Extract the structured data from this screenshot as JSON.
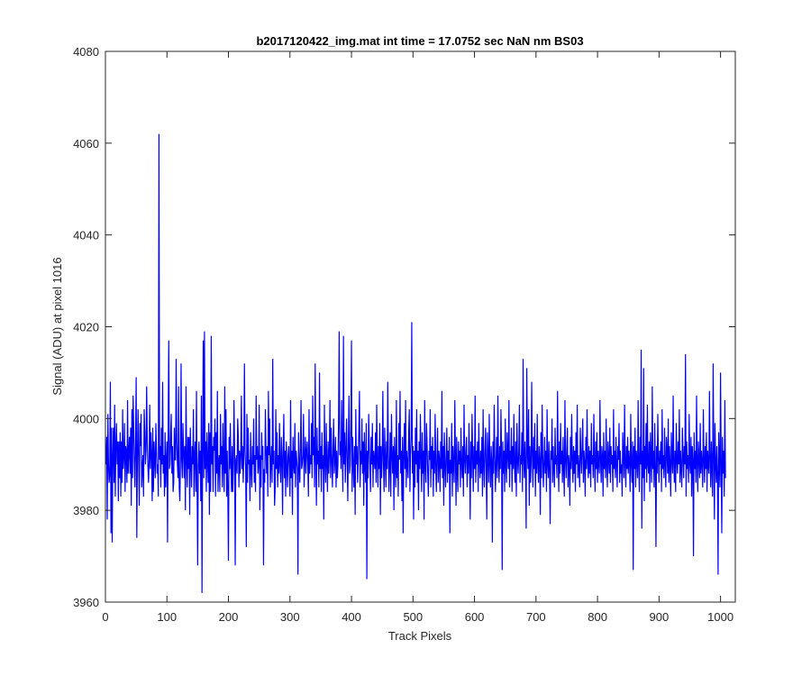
{
  "chart_data": {
    "type": "line",
    "title": "b2017120422_img.mat int time = 17.0752 sec  NaN nm BS03",
    "xlabel": "Track Pixels",
    "ylabel": "Signal (ADU) at pixel 1016",
    "xlim": [
      0,
      1024
    ],
    "ylim": [
      3960,
      4080
    ],
    "xticks": [
      0,
      100,
      200,
      300,
      400,
      500,
      600,
      700,
      800,
      900,
      1000
    ],
    "yticks": [
      3960,
      3980,
      4000,
      4020,
      4040,
      4060,
      4080
    ],
    "grid": false,
    "legend": "none",
    "series": [
      {
        "color": "#0000ff",
        "x_start": 1,
        "x_step": 1,
        "values": [
          3990,
          3996,
          3978,
          4001,
          3990,
          3986,
          3988,
          4008,
          3975,
          3998,
          3973,
          3992,
          3998,
          3986,
          4003,
          3983,
          3994,
          3999,
          3990,
          3995,
          3982,
          3995,
          3987,
          3997,
          3983,
          3995,
          3986,
          4002,
          3989,
          3992,
          3999,
          3984,
          3994,
          3993,
          3986,
          4004,
          3988,
          3993,
          3996,
          3988,
          3998,
          3981,
          4002,
          3987,
          4005,
          3998,
          3990,
          3985,
          3996,
          4009,
          3974,
          3992,
          4002,
          3991,
          3981,
          3999,
          3994,
          4001,
          3985,
          3989,
          3992,
          3983,
          4002,
          3997,
          3990,
          3993,
          4007,
          3995,
          3990,
          3986,
          3991,
          4003,
          3989,
          3997,
          3992,
          3982,
          3998,
          3984,
          3995,
          3991,
          3987,
          3999,
          3993,
          3988,
          3990,
          3983,
          4062,
          3991,
          3994,
          3985,
          3998,
          3990,
          4008,
          3988,
          3992,
          3983,
          3997,
          3985,
          3991,
          3995,
          3973,
          3999,
          4017,
          3989,
          3990,
          3996,
          4001,
          3988,
          3994,
          3984,
          3986,
          3998,
          3991,
          3991,
          4013,
          3995,
          3990,
          3987,
          4007,
          3985,
          3982,
          3991,
          4012,
          3991,
          3987,
          3999,
          3993,
          3987,
          3994,
          3980,
          4007,
          3991,
          3985,
          3996,
          3989,
          3996,
          3979,
          3998,
          3991,
          3985,
          3994,
          3990,
          4002,
          3983,
          3992,
          3995,
          3984,
          4006,
          3986,
          3968,
          3990,
          3995,
          3988,
          3993,
          3982,
          4005,
          3962,
          3993,
          4017,
          3987,
          4019,
          3989,
          3995,
          3984,
          3997,
          3991,
          3986,
          3999,
          3979,
          3997,
          3984,
          4018,
          3990,
          3994,
          3984,
          3996,
          3993,
          4000,
          3983,
          3997,
          3988,
          4006,
          3984,
          3990,
          3992,
          3984,
          4001,
          3990,
          3994,
          3985,
          3999,
          3990,
          3984,
          4007,
          3988,
          4002,
          3983,
          3993,
          3984,
          3969,
          3996,
          3989,
          3999,
          3990,
          3984,
          3994,
          3984,
          3990,
          4004,
          3993,
          3968,
          3991,
          3992,
          3988,
          4000,
          3996,
          3985,
          3993,
          3988,
          3992,
          4005,
          3989,
          3994,
          3986,
          3992,
          4012,
          3993,
          3989,
          3972,
          4001,
          3986,
          3998,
          3990,
          3991,
          3982,
          3997,
          3989,
          3985,
          3994,
          3990,
          4000,
          3986,
          3992,
          3984,
          4005,
          3991,
          3994,
          3988,
          3990,
          4003,
          3980,
          3992,
          3985,
          3997,
          3991,
          3994,
          3968,
          3989,
          3986,
          4002,
          3993,
          3988,
          3994,
          3983,
          4006,
          3992,
          4000,
          3985,
          3990,
          3994,
          3986,
          4013,
          3990,
          3993,
          3981,
          3985,
          4002,
          3989,
          3997,
          3985,
          3992,
          3988,
          3999,
          3990,
          3986,
          3996,
          3992,
          3979,
          3993,
          4001,
          3987,
          3993,
          3983,
          3995,
          3990,
          3985,
          3992,
          3994,
          3989,
          3983,
          4004,
          3987,
          3993,
          3979,
          3996,
          3990,
          3988,
          3999,
          3985,
          3993,
          3991,
          3989,
          3966,
          3997,
          3991,
          3986,
          3993,
          4004,
          3989,
          3990,
          3992,
          4001,
          3985,
          3991,
          3996,
          3988,
          3993,
          3995,
          3990,
          3983,
          4002,
          3988,
          3992,
          3990,
          3999,
          3987,
          4005,
          3992,
          3996,
          3985,
          4012,
          3991,
          3981,
          3998,
          3990,
          3993,
          3985,
          4010,
          3989,
          3994,
          3984,
          3997,
          3989,
          3992,
          3978,
          4003,
          3991,
          3986,
          3999,
          3990,
          3984,
          3995,
          3988,
          3992,
          4004,
          3987,
          3998,
          3991,
          3985,
          3993,
          4000,
          3988,
          3991,
          3996,
          3985,
          3993,
          3987,
          3990,
          3999,
          4019,
          3992,
          3995,
          3989,
          4004,
          3993,
          3984,
          4018,
          3990,
          3997,
          3986,
          3993,
          4000,
          3991,
          3982,
          3995,
          4005,
          3988,
          3990,
          3998,
          4017,
          3984,
          3996,
          3990,
          3985,
          3994,
          3979,
          4002,
          3990,
          3994,
          3986,
          3991,
          3998,
          4006,
          3985,
          3993,
          3990,
          4000,
          3988,
          3995,
          3981,
          3997,
          3990,
          3986,
          3999,
          3965,
          3993,
          3987,
          4001,
          3994,
          3989,
          3984,
          3996,
          3990,
          3999,
          3985,
          3993,
          3991,
          3989,
          3997,
          3986,
          4003,
          3991,
          3985,
          3994,
          3989,
          3999,
          3979,
          3994,
          3987,
          3992,
          4006,
          3990,
          3984,
          3998,
          3991,
          3985,
          3995,
          3989,
          4008,
          3993,
          3984,
          3990,
          3997,
          3983,
          4001,
          3992,
          3988,
          3994,
          3980,
          3996,
          3990,
          3985,
          4004,
          3987,
          3992,
          3983,
          3999,
          3991,
          4006,
          3988,
          3993,
          3982,
          3996,
          3975,
          3992,
          3999,
          3989,
          4004,
          3985,
          3993,
          3990,
          3987,
          3997,
          4002,
          3984,
          3992,
          3996,
          4021,
          3988,
          3994,
          3978,
          3993,
          3985,
          3998,
          3990,
          4002,
          3986,
          3993,
          3980,
          3995,
          3989,
          4001,
          3991,
          3984,
          3997,
          3988,
          3993,
          3978,
          4004,
          3990,
          3986,
          3999,
          3994,
          3988,
          3983,
          3993,
          3991,
          4002,
          3985,
          3994,
          3989,
          3996,
          3983,
          3993,
          3988,
          4001,
          3990,
          3984,
          3992,
          3998,
          3986,
          3993,
          3991,
          3984,
          3995,
          3989,
          4006,
          3987,
          3994,
          3981,
          3997,
          3990,
          3985,
          3992,
          3998,
          3986,
          3993,
          3988,
          3996,
          3975,
          3991,
          3988,
          3999,
          3983,
          3994,
          3990,
          3986,
          4004,
          3992,
          3981,
          3996,
          3989,
          3984,
          3995,
          3990,
          3993,
          3985,
          3998,
          3990,
          3987,
          3994,
          3983,
          4003,
          3991,
          3988,
          3993,
          3996,
          3985,
          3992,
          3988,
          3999,
          3990,
          3978,
          3995,
          3987,
          4001,
          3992,
          3984,
          3994,
          3989,
          4005,
          3986,
          3993,
          3990,
          3995,
          3984,
          3999,
          3991,
          3987,
          3993,
          3988,
          3996,
          3983,
          4002,
          3990,
          3985,
          3993,
          3998,
          3989,
          3978,
          3997,
          3992,
          3986,
          4001,
          3990,
          3985,
          3994,
          3991,
          3973,
          3995,
          3988,
          4003,
          3992,
          3984,
          3990,
          3996,
          3987,
          4005,
          3991,
          3986,
          3994,
          3989,
          4002,
          3992,
          3967,
          3995,
          3988,
          3993,
          3984,
          4000,
          3990,
          3986,
          3997,
          3992,
          3989,
          4004,
          3985,
          3993,
          3990,
          3998,
          3984,
          3994,
          3989,
          4001,
          3990,
          3986,
          3995,
          3983,
          3999,
          3991,
          3988,
          3993,
          4003,
          3986,
          3992,
          3990,
          3997,
          3984,
          4013,
          3991,
          3987,
          3995,
          3989,
          3976,
          4011,
          3993,
          3989,
          4002,
          3981,
          3994,
          3986,
          3990,
          4008,
          3992,
          3985,
          3996,
          3989,
          3999,
          3983,
          3993,
          3988,
          4001,
          3990,
          3986,
          3994,
          3991,
          3979,
          3997,
          3987,
          4003,
          3992,
          3985,
          3990,
          3996,
          3988,
          3993,
          3984,
          4002,
          3990,
          3987,
          3995,
          3989,
          3977,
          3993,
          3991,
          4000,
          3986,
          3994,
          3989,
          3985,
          3998,
          3990,
          3992,
          3987,
          4006,
          3991,
          3984,
          3995,
          3988,
          3999,
          3990,
          3993,
          3986,
          3996,
          3989,
          3983,
          4004,
          3991,
          3987,
          3993,
          3998,
          3985,
          3992,
          3990,
          3981,
          3996,
          3989,
          4001,
          3991,
          3986,
          3994,
          3988,
          3993,
          3984,
          3997,
          3990,
          4003,
          3987,
          3992,
          3989,
          3985,
          3998,
          3992,
          3988,
          3994,
          4000,
          3986,
          3993,
          3990,
          3983,
          3996,
          3989,
          4002,
          3991,
          3987,
          3994,
          3988,
          3993,
          3985,
          3999,
          3990,
          3992,
          3987,
          4001,
          3991,
          3984,
          3995,
          3989,
          3997,
          3986,
          3993,
          3990,
          3988,
          4004,
          3991,
          3986,
          3994,
          3992,
          3983,
          3997,
          3989,
          3993,
          3987,
          4000,
          3990,
          3985,
          3995,
          3991,
          3988,
          3998,
          3986,
          3994,
          3990,
          3992,
          3984,
          4002,
          3989,
          3993,
          3987,
          3996,
          3990,
          3985,
          3994,
          3991,
          3999,
          3986,
          3993,
          3988,
          3990,
          3983,
          3997,
          3992,
          3987,
          4003,
          3990,
          3985,
          3994,
          3989,
          3996,
          3988,
          3993,
          3991,
          3984,
          4001,
          3990,
          3986,
          3995,
          3967,
          3994,
          3989,
          3998,
          3985,
          3993,
          3991,
          3987,
          4004,
          3990,
          3984,
          3996,
          3990,
          4015,
          3976,
          3993,
          3987,
          4011,
          3982,
          3994,
          3989,
          3999,
          3986,
          4003,
          3990,
          3988,
          3995,
          3984,
          3997,
          3991,
          3986,
          4007,
          3989,
          3993,
          3985,
          3999,
          3990,
          3972,
          3994,
          3988,
          4001,
          3991,
          3986,
          3993,
          3990,
          3995,
          3984,
          4002,
          3989,
          3992,
          3987,
          3998,
          3990,
          3985,
          3996,
          3993,
          3988,
          4000,
          3986,
          3994,
          3990,
          3983,
          3997,
          3991,
          3988,
          4005,
          3990,
          3986,
          3993,
          3984,
          3999,
          3991,
          3988,
          3995,
          3990,
          4002,
          3986,
          3993,
          3989,
          3985,
          3998,
          3992,
          3987,
          3994,
          3990,
          4014,
          3983,
          3995,
          3989,
          3992,
          3986,
          4001,
          3990,
          3988,
          3996,
          3983,
          3994,
          3991,
          3970,
          3997,
          3989,
          3993,
          3986,
          4005,
          3990,
          3984,
          3995,
          3991,
          3987,
          3999,
          3988,
          3993,
          3990,
          3985,
          4002,
          3991,
          3986,
          3994,
          3989,
          3997,
          3984,
          3993,
          3990,
          3988,
          4006,
          3991,
          3985,
          3995,
          3989,
          3983,
          4012,
          3992,
          3978,
          3999,
          3990,
          3986,
          3994,
          3988,
          3966,
          3997,
          3991,
          3985,
          4010,
          3990,
          3975,
          3996,
          3988,
          3993,
          3983,
          4004,
          3987
        ]
      }
    ]
  }
}
